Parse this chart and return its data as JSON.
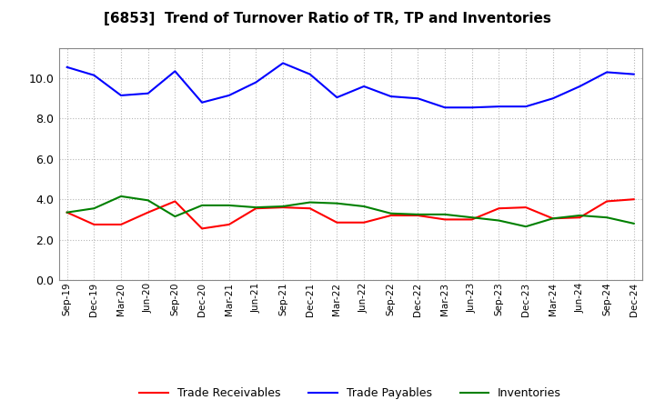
{
  "title": "[6853]  Trend of Turnover Ratio of TR, TP and Inventories",
  "x_labels": [
    "Sep-19",
    "Dec-19",
    "Mar-20",
    "Jun-20",
    "Sep-20",
    "Dec-20",
    "Mar-21",
    "Jun-21",
    "Sep-21",
    "Dec-21",
    "Mar-22",
    "Jun-22",
    "Sep-22",
    "Dec-22",
    "Mar-23",
    "Jun-23",
    "Sep-23",
    "Dec-23",
    "Mar-24",
    "Jun-24",
    "Sep-24",
    "Dec-24"
  ],
  "trade_receivables": [
    3.35,
    2.75,
    2.75,
    3.35,
    3.9,
    2.55,
    2.75,
    3.55,
    3.6,
    3.55,
    2.85,
    2.85,
    3.2,
    3.2,
    3.0,
    3.0,
    3.55,
    3.6,
    3.05,
    3.1,
    3.9,
    4.0
  ],
  "trade_payables": [
    10.55,
    10.15,
    9.15,
    9.25,
    10.35,
    8.8,
    9.15,
    9.8,
    10.75,
    10.2,
    9.05,
    9.6,
    9.1,
    9.0,
    8.55,
    8.55,
    8.6,
    8.6,
    9.0,
    9.6,
    10.3,
    10.2
  ],
  "inventories": [
    3.35,
    3.55,
    4.15,
    3.95,
    3.15,
    3.7,
    3.7,
    3.6,
    3.65,
    3.85,
    3.8,
    3.65,
    3.3,
    3.25,
    3.25,
    3.1,
    2.95,
    2.65,
    3.05,
    3.2,
    3.1,
    2.8
  ],
  "ylim": [
    0.0,
    11.5
  ],
  "yticks": [
    0.0,
    2.0,
    4.0,
    6.0,
    8.0,
    10.0
  ],
  "colors": {
    "trade_receivables": "#ff0000",
    "trade_payables": "#0000ff",
    "inventories": "#008000"
  },
  "legend_labels": [
    "Trade Receivables",
    "Trade Payables",
    "Inventories"
  ],
  "background_color": "#ffffff",
  "plot_bg_color": "#ffffff",
  "grid_color": "#999999"
}
